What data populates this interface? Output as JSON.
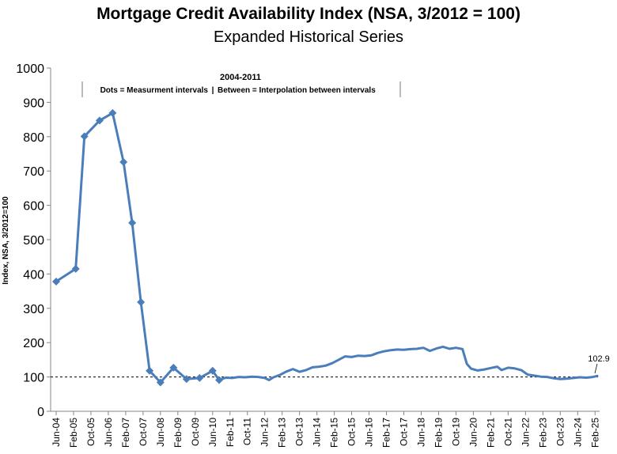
{
  "chart_data": {
    "type": "line",
    "title": "Mortgage Credit Availability Index (NSA, 3/2012 = 100)",
    "subtitle": "Expanded Historical Series",
    "ylabel": "Index, NSA, 3/2012=100",
    "xlabel": "",
    "ylim": [
      0,
      1000
    ],
    "yticks": [
      0,
      100,
      200,
      300,
      400,
      500,
      600,
      700,
      800,
      900,
      1000
    ],
    "x_start": "Jun-04",
    "x_end": "Mar-25",
    "x_tick_labels": [
      "Jun-04",
      "Feb-05",
      "Oct-05",
      "Jun-06",
      "Feb-07",
      "Oct-07",
      "Jun-08",
      "Feb-09",
      "Oct-09",
      "Jun-10",
      "Feb-11",
      "Oct-11",
      "Jun-12",
      "Feb-13",
      "Oct-13",
      "Jun-14",
      "Feb-15",
      "Oct-15",
      "Jun-16",
      "Feb-17",
      "Oct-17",
      "Jun-18",
      "Feb-19",
      "Oct-19",
      "Jun-20",
      "Feb-21",
      "Oct-21",
      "Jun-22",
      "Feb-23",
      "Oct-23",
      "Jun-24",
      "Feb-25"
    ],
    "reference_line": {
      "y": 100,
      "style": "dashed"
    },
    "annotation": {
      "title": "2004-2011",
      "text_dots": "Dots = Measurment intervals",
      "separator": "|",
      "text_between": "Between = Interpolation between intervals"
    },
    "last_value_label": "102.9",
    "series": [
      {
        "color": "#4A7EBB",
        "measurement_points": [
          [
            "Jun-04",
            378
          ],
          [
            "Mar-05",
            415
          ],
          [
            "Jul-05",
            801
          ],
          [
            "Feb-06",
            847
          ],
          [
            "Aug-06",
            869
          ],
          [
            "Jan-07",
            726
          ],
          [
            "May-07",
            549
          ],
          [
            "Sep-07",
            318
          ],
          [
            "Jan-08",
            118
          ],
          [
            "Jun-08",
            84
          ],
          [
            "Dec-08",
            127
          ],
          [
            "Jun-09",
            94
          ],
          [
            "Dec-09",
            97
          ],
          [
            "Jun-10",
            118
          ],
          [
            "Sep-10",
            91
          ]
        ],
        "points": [
          [
            "Jun-04",
            378
          ],
          [
            "Mar-05",
            415
          ],
          [
            "Jul-05",
            801
          ],
          [
            "Feb-06",
            847
          ],
          [
            "Aug-06",
            869
          ],
          [
            "Jan-07",
            726
          ],
          [
            "May-07",
            549
          ],
          [
            "Sep-07",
            318
          ],
          [
            "Jan-08",
            118
          ],
          [
            "Jun-08",
            84
          ],
          [
            "Dec-08",
            127
          ],
          [
            "Jun-09",
            94
          ],
          [
            "Dec-09",
            97
          ],
          [
            "Jun-10",
            118
          ],
          [
            "Sep-10",
            91
          ],
          [
            "Dec-10",
            98
          ],
          [
            "Mar-11",
            97
          ],
          [
            "Jun-11",
            100
          ],
          [
            "Sep-11",
            99
          ],
          [
            "Dec-11",
            101
          ],
          [
            "Mar-12",
            100
          ],
          [
            "Jun-12",
            97
          ],
          [
            "Aug-12",
            91
          ],
          [
            "Oct-12",
            99
          ],
          [
            "Jan-13",
            106
          ],
          [
            "Apr-13",
            116
          ],
          [
            "Jul-13",
            123
          ],
          [
            "Oct-13",
            115
          ],
          [
            "Jan-14",
            120
          ],
          [
            "Apr-14",
            128
          ],
          [
            "Jul-14",
            130
          ],
          [
            "Oct-14",
            133
          ],
          [
            "Jan-15",
            140
          ],
          [
            "Apr-15",
            150
          ],
          [
            "Jul-15",
            160
          ],
          [
            "Oct-15",
            158
          ],
          [
            "Jan-16",
            162
          ],
          [
            "Apr-16",
            161
          ],
          [
            "Jul-16",
            163
          ],
          [
            "Oct-16",
            170
          ],
          [
            "Jan-17",
            175
          ],
          [
            "Apr-17",
            178
          ],
          [
            "Jul-17",
            180
          ],
          [
            "Oct-17",
            179
          ],
          [
            "Jan-18",
            181
          ],
          [
            "Apr-18",
            182
          ],
          [
            "Jul-18",
            185
          ],
          [
            "Oct-18",
            176
          ],
          [
            "Jan-19",
            183
          ],
          [
            "Apr-19",
            188
          ],
          [
            "Jul-19",
            182
          ],
          [
            "Oct-19",
            185
          ],
          [
            "Jan-20",
            181
          ],
          [
            "Mar-20",
            138
          ],
          [
            "May-20",
            124
          ],
          [
            "Aug-20",
            119
          ],
          [
            "Nov-20",
            122
          ],
          [
            "Feb-21",
            126
          ],
          [
            "May-21",
            130
          ],
          [
            "Jul-21",
            120
          ],
          [
            "Oct-21",
            127
          ],
          [
            "Jan-22",
            125
          ],
          [
            "Apr-22",
            120
          ],
          [
            "Jul-22",
            107
          ],
          [
            "Oct-22",
            104
          ],
          [
            "Jan-23",
            101
          ],
          [
            "Apr-23",
            100
          ],
          [
            "Jul-23",
            96
          ],
          [
            "Oct-23",
            94
          ],
          [
            "Jan-24",
            95
          ],
          [
            "Apr-24",
            97
          ],
          [
            "Jul-24",
            99
          ],
          [
            "Oct-24",
            98
          ],
          [
            "Jan-25",
            100
          ],
          [
            "Mar-25",
            102.9
          ]
        ]
      }
    ],
    "grid": false,
    "legend": "none"
  }
}
